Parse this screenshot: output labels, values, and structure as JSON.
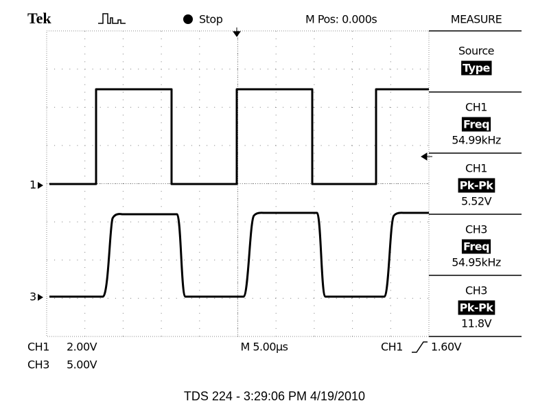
{
  "header": {
    "brand": "Tek",
    "status": "Stop",
    "position": "M Pos: 0.000s",
    "menu": "MEASURE"
  },
  "measure": [
    {
      "title": "Source",
      "tag": "Type"
    },
    {
      "title": "CH1",
      "tag": "Freq",
      "value": "54.99kHz"
    },
    {
      "title": "CH1",
      "tag": "Pk-Pk",
      "value": "5.52V"
    },
    {
      "title": "CH3",
      "tag": "Freq",
      "value": "54.95kHz"
    },
    {
      "title": "CH3",
      "tag": "Pk-Pk",
      "value": "11.8V"
    }
  ],
  "markers": {
    "ch1": "1",
    "ch3": "3"
  },
  "status_bar": {
    "ch1_label": "CH1",
    "ch1_scale": "2.00V",
    "ch3_label": "CH3",
    "ch3_scale": "5.00V",
    "timebase": "M 5.00µs",
    "trigger_source": "CH1",
    "trigger_level": "1.60V"
  },
  "footer": "TDS 224 - 3:29:06 PM   4/19/2010"
}
